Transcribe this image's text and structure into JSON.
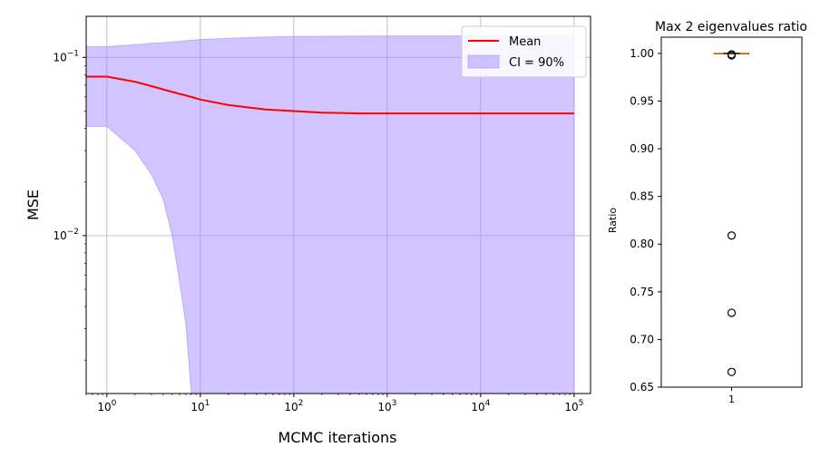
{
  "chart_data": [
    {
      "type": "area",
      "xscale": "log",
      "yscale": "log",
      "xlabel": "MCMC iterations",
      "ylabel": "MSE",
      "xlim": [
        0.6,
        150000
      ],
      "ylim": [
        0.0013,
        0.17
      ],
      "xticks": [
        1,
        10,
        100,
        1000,
        10000,
        100000
      ],
      "xtick_labels": [
        "10^0",
        "10^1",
        "10^2",
        "10^3",
        "10^4",
        "10^5"
      ],
      "yticks": [
        0.01,
        0.1
      ],
      "ytick_labels": [
        "10^-2",
        "10^-1"
      ],
      "grid": true,
      "legend_position": "top-right",
      "series": [
        {
          "name": "Mean",
          "kind": "line",
          "color": "#ff0000",
          "x": [
            0.6,
            1,
            2,
            3,
            5,
            8,
            10,
            20,
            50,
            100,
            200,
            500,
            1000,
            10000,
            100000
          ],
          "y": [
            0.078,
            0.078,
            0.073,
            0.069,
            0.064,
            0.06,
            0.058,
            0.054,
            0.051,
            0.05,
            0.049,
            0.0485,
            0.0485,
            0.0485,
            0.0485
          ]
        },
        {
          "name": "CI = 90%",
          "kind": "band",
          "color": "#a58cff",
          "x": [
            0.6,
            1,
            2,
            3,
            4,
            5,
            6,
            7,
            8,
            10,
            20,
            50,
            100,
            1000,
            10000,
            100000
          ],
          "lower": [
            0.041,
            0.041,
            0.03,
            0.022,
            0.016,
            0.01,
            0.0055,
            0.0032,
            0.0013,
            0.0013,
            0.0013,
            0.0013,
            0.0013,
            0.0013,
            0.0013,
            0.0013
          ],
          "upper": [
            0.115,
            0.115,
            0.118,
            0.12,
            0.121,
            0.122,
            0.123,
            0.124,
            0.125,
            0.126,
            0.128,
            0.13,
            0.131,
            0.132,
            0.132,
            0.132
          ]
        }
      ]
    },
    {
      "type": "box",
      "title": "Max 2 eigenvalues ratio",
      "ylabel": "Ratio",
      "categories": [
        "1"
      ],
      "ylim": [
        0.65,
        1.017
      ],
      "yticks": [
        0.65,
        0.7,
        0.75,
        0.8,
        0.85,
        0.9,
        0.95,
        1.0
      ],
      "ytick_labels": [
        "0.65",
        "0.70",
        "0.75",
        "0.80",
        "0.85",
        "0.90",
        "0.95",
        "1.00"
      ],
      "median": 1.0,
      "q1": 1.0,
      "q3": 1.0,
      "whisker_low": 1.0,
      "whisker_high": 1.0,
      "outliers": [
        0.999,
        0.998,
        0.809,
        0.728,
        0.666
      ],
      "median_color": "#ff7f0e"
    }
  ]
}
